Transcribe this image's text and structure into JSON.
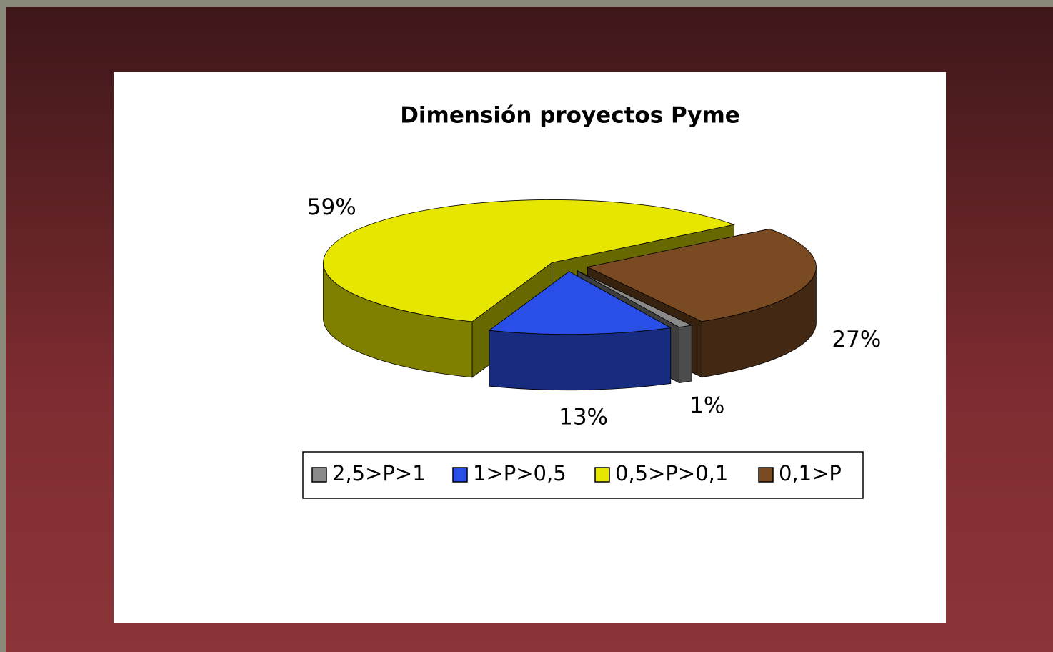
{
  "chart_data": {
    "type": "pie3d",
    "title": "Dimensión proyectos Pyme",
    "categories": [
      "2,5>P>1",
      "1>P>0,5",
      "0,5>P>0,1",
      "0,1>P"
    ],
    "values": [
      1,
      13,
      59,
      27
    ],
    "value_labels": [
      "1%",
      "13%",
      "59%",
      "27%"
    ],
    "colors": [
      "#8a8a8a",
      "#2a4ee8",
      "#e6e600",
      "#7a4a22"
    ],
    "legend": "bottom"
  }
}
